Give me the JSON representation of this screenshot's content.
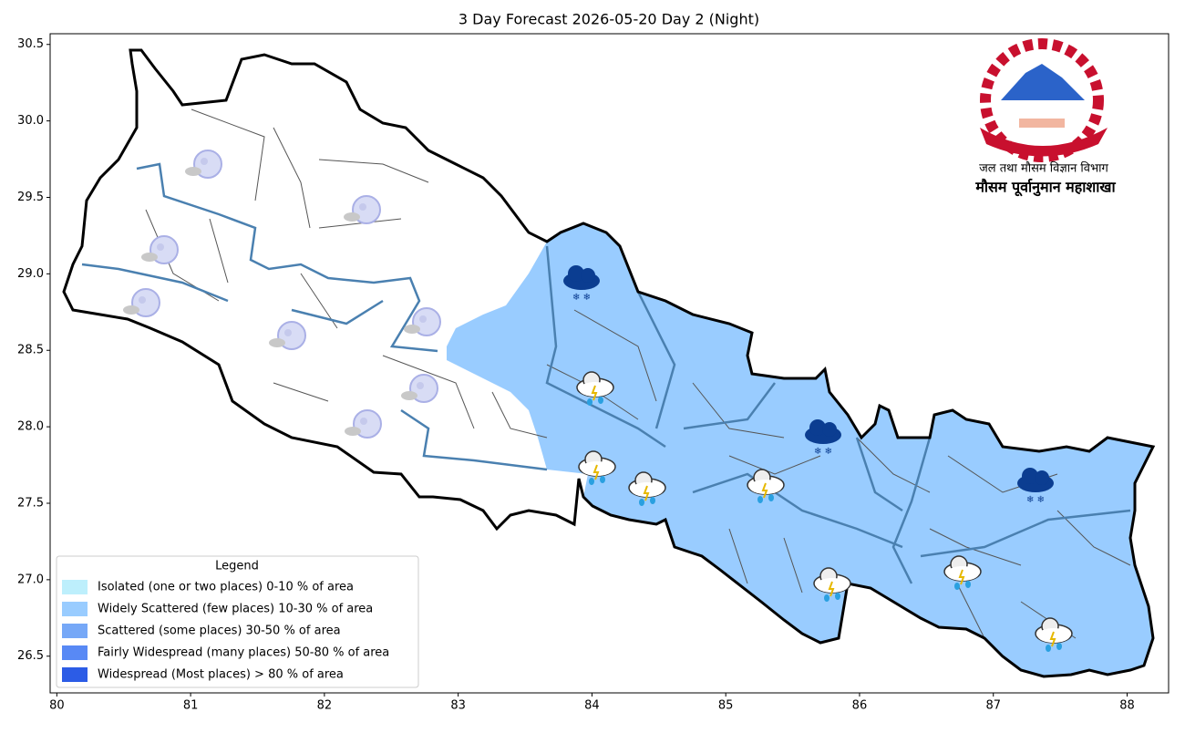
{
  "chart_data": {
    "type": "map",
    "title": "3 Day Forecast 2026-05-20 Day 2 (Night)",
    "xlim": [
      79.95,
      88.31
    ],
    "ylim": [
      26.26,
      30.57
    ],
    "xticks": [
      80,
      81,
      82,
      83,
      84,
      85,
      86,
      87,
      88
    ],
    "yticks": [
      26.5,
      {
        "value": 27,
        "label": "27.0"
      },
      27.5,
      {
        "value": 28,
        "label": "28.0"
      },
      28.5,
      {
        "value": 29,
        "label": "29.0"
      },
      29.5,
      {
        "value": 30,
        "label": "30.0"
      },
      30.5
    ],
    "legend": {
      "title": "Legend",
      "items": [
        {
          "label": "Isolated (one or two places)  0-10 % of area",
          "color": "#bdeffc"
        },
        {
          "label": "Widely Scattered (few places)  10-30 % of area",
          "color": "#99ccff"
        },
        {
          "label": "Scattered (some places)  30-50 % of area",
          "color": "#76a8f7"
        },
        {
          "label": "Fairly Widespread (many places)  50-80 % of area",
          "color": "#5889f5"
        },
        {
          "label": "Widespread (Most places) > 80 % of area",
          "color": "#2c5ce6"
        }
      ]
    },
    "logo": {
      "department": "जल तथा मौसम विज्ञान विभाग",
      "division": "मौसम पूर्वानुमान महाशाखा"
    }
  }
}
